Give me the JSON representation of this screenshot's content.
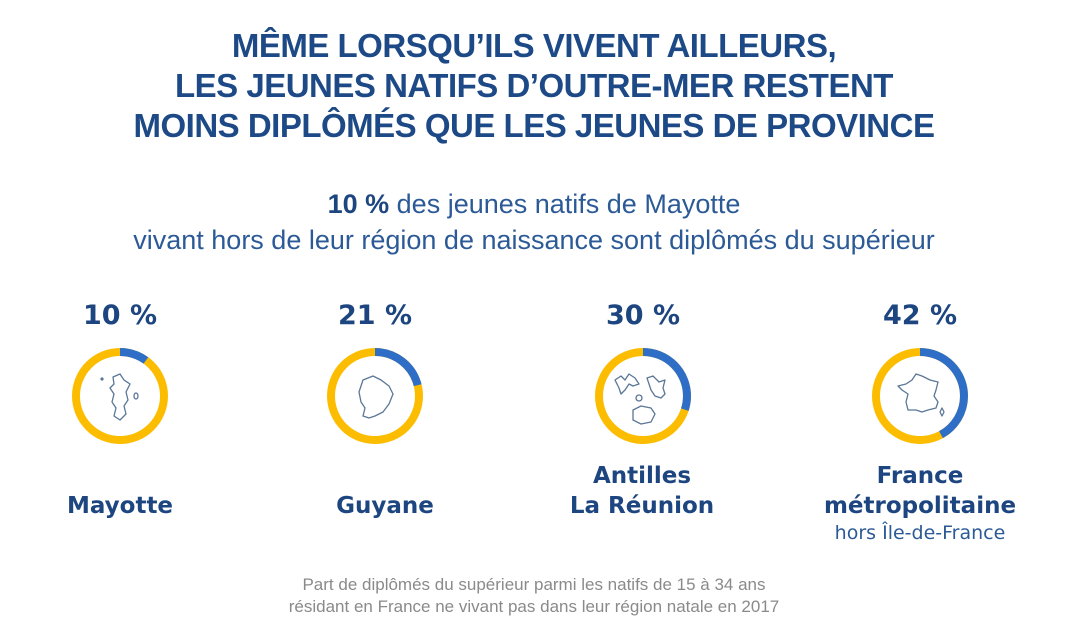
{
  "title": {
    "lines": [
      "MÊME LORSQU’ILS VIVENT AILLEURS,",
      "LES JEUNES NATIFS D’OUTRE-MER RESTENT",
      "MOINS DIPLÔMÉS QUE LES JEUNES DE PROVINCE"
    ]
  },
  "subtitle": {
    "highlight": "10 %",
    "line1_rest": " des jeunes natifs de Mayotte",
    "line2": "vivant hors de leur région de naissance sont diplômés du supérieur"
  },
  "colors": {
    "value_arc": "#2f6ec6",
    "remainder_arc": "#fcbd00",
    "text_dark": "#1d4580"
  },
  "chart_data": {
    "type": "pie",
    "subtype": "donut-gauges",
    "unit": "%",
    "title": "Part de diplômés du supérieur parmi les natifs de 15 à 34 ans résidant en France ne vivant pas dans leur région natale en 2017",
    "categories": [
      "Mayotte",
      "Guyane",
      "Antilles La Réunion",
      "France métropolitaine hors Île-de-France"
    ],
    "values": [
      10,
      21,
      30,
      42
    ],
    "items": [
      {
        "value": 10,
        "value_label": "10 %",
        "label_lines": [
          "Mayotte"
        ],
        "sublabel": "",
        "icon": "mayotte-map-icon"
      },
      {
        "value": 21,
        "value_label": "21 %",
        "label_lines": [
          "Guyane"
        ],
        "sublabel": "",
        "icon": "guyane-map-icon"
      },
      {
        "value": 30,
        "value_label": "30 %",
        "label_lines": [
          "Antilles",
          "La Réunion"
        ],
        "sublabel": "",
        "icon": "antilles-reunion-map-icon"
      },
      {
        "value": 42,
        "value_label": "42 %",
        "label_lines": [
          "France",
          "métropolitaine"
        ],
        "sublabel": "hors Île-de-France",
        "icon": "france-map-icon"
      }
    ],
    "range": [
      0,
      100
    ]
  },
  "footnote": {
    "lines": [
      "Part de diplômés du supérieur parmi les natifs de 15 à 34 ans",
      "résidant en France ne vivant pas dans leur région natale en 2017"
    ]
  }
}
